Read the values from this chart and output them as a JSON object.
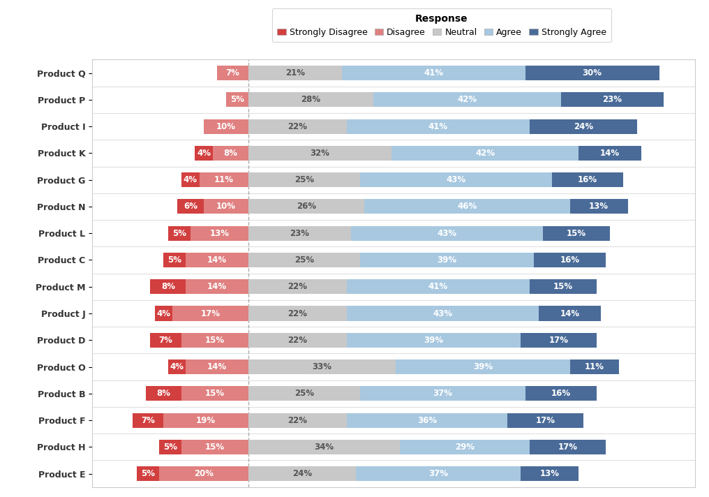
{
  "title": "Response",
  "categories": [
    "Product Q",
    "Product P",
    "Product I",
    "Product K",
    "Product G",
    "Product N",
    "Product L",
    "Product C",
    "Product M",
    "Product J",
    "Product D",
    "Product O",
    "Product B",
    "Product F",
    "Product H",
    "Product E"
  ],
  "strongly_disagree": [
    0,
    0,
    0,
    4,
    4,
    6,
    5,
    5,
    8,
    4,
    7,
    4,
    8,
    7,
    5,
    5
  ],
  "disagree": [
    7,
    5,
    10,
    8,
    11,
    10,
    13,
    14,
    14,
    17,
    15,
    14,
    15,
    19,
    15,
    20
  ],
  "neutral": [
    21,
    28,
    22,
    32,
    25,
    26,
    23,
    25,
    22,
    22,
    22,
    33,
    25,
    22,
    34,
    24
  ],
  "agree": [
    41,
    42,
    41,
    42,
    43,
    46,
    43,
    39,
    41,
    43,
    39,
    39,
    37,
    36,
    29,
    37
  ],
  "strongly_agree": [
    30,
    23,
    24,
    14,
    16,
    13,
    15,
    16,
    15,
    14,
    17,
    11,
    16,
    17,
    17,
    13
  ],
  "colors": {
    "strongly_disagree": "#d23f3f",
    "disagree": "#e08080",
    "neutral": "#c8c8c8",
    "agree": "#a8c8e0",
    "strongly_agree": "#4a6b98"
  },
  "text_color_dark": "#333333",
  "text_color_light": "#ffffff",
  "background_color": "#ffffff",
  "grid_color": "#e0e0e0",
  "dashed_line_color": "#999999",
  "legend_labels": [
    "Strongly Disagree",
    "Disagree",
    "Neutral",
    "Agree",
    "Strongly Agree"
  ],
  "bar_height": 0.55,
  "xlim_left": -35,
  "xlim_right": 100,
  "font_size_labels": 8.5,
  "font_size_ytick": 9,
  "font_size_legend": 9,
  "font_size_title": 10
}
